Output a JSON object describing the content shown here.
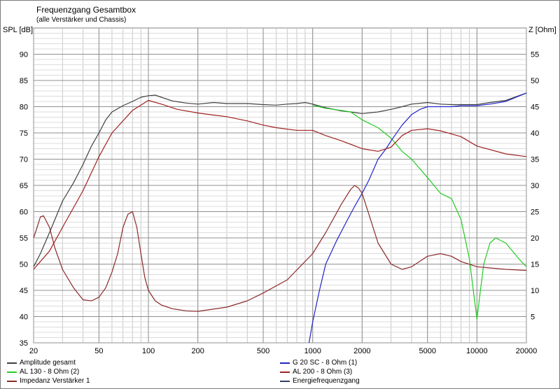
{
  "chart_data": {
    "type": "line",
    "title": "Frequenzgang Gesamtbox",
    "subtitle": "(alle Verstärker und Chassis)",
    "ylabel": "SPL [dB]",
    "y2label": "Z [Ohm]",
    "xscale": "log",
    "xlim": [
      20,
      20000
    ],
    "ylim": [
      35,
      95
    ],
    "y2lim": [
      0,
      60
    ],
    "grid": true,
    "x_ticks": [
      20,
      50,
      100,
      200,
      500,
      1000,
      2000,
      5000,
      10000,
      20000
    ],
    "y_ticks": [
      35,
      40,
      45,
      50,
      55,
      60,
      65,
      70,
      75,
      80,
      85,
      90
    ],
    "y2_ticks": [
      5,
      10,
      15,
      20,
      25,
      30,
      35,
      40,
      45,
      50,
      55
    ],
    "series": [
      {
        "name": "Amplitude gesamt",
        "color": "#404040",
        "axis": "left",
        "x": [
          20,
          22,
          25,
          30,
          35,
          40,
          45,
          50,
          55,
          60,
          70,
          80,
          90,
          100,
          110,
          120,
          140,
          170,
          200,
          250,
          300,
          400,
          500,
          600,
          700,
          800,
          900,
          1000,
          1200,
          1500,
          1700,
          2000,
          2500,
          3000,
          3500,
          4000,
          5000,
          6000,
          7000,
          8000,
          10000,
          12000,
          15000,
          20000
        ],
        "y": [
          49.5,
          52,
          56,
          62,
          65.5,
          69,
          72.5,
          75,
          77.5,
          79,
          80.2,
          81,
          81.8,
          82.1,
          82.2,
          81.8,
          81.1,
          80.7,
          80.5,
          80.8,
          80.6,
          80.6,
          80.4,
          80.3,
          80.5,
          80.6,
          80.8,
          80.5,
          79.8,
          79.2,
          79.0,
          78.7,
          79.0,
          79.5,
          80.0,
          80.5,
          80.8,
          80.5,
          80.4,
          80.4,
          80.4,
          80.8,
          81.2,
          82.6
        ]
      },
      {
        "name": "AL 130 - 8 Ohm (2)",
        "color": "#22cc22",
        "axis": "left",
        "x": [
          1000,
          1200,
          1500,
          1700,
          2000,
          2500,
          3000,
          3500,
          4000,
          5000,
          6000,
          7000,
          8000,
          9000,
          9500,
          10000,
          10500,
          11000,
          12000,
          13000,
          15000,
          18000,
          20000
        ],
        "y": [
          80.3,
          79.7,
          79.3,
          79.0,
          77.5,
          76.0,
          74.0,
          71.5,
          70.0,
          66.5,
          63.5,
          62.5,
          58.5,
          51.0,
          45.0,
          39.5,
          45.0,
          50.0,
          54.0,
          55.0,
          54.0,
          51.0,
          49.5
        ]
      },
      {
        "name": "G 20 SC - 8 Ohm (1)",
        "color": "#2222cc",
        "axis": "left",
        "x": [
          950,
          1000,
          1100,
          1200,
          1400,
          1600,
          1800,
          2000,
          2200,
          2500,
          2800,
          3000,
          3500,
          4000,
          4500,
          5000,
          6000,
          7000,
          8000,
          10000,
          12000,
          15000,
          20000
        ],
        "y": [
          35.0,
          39.0,
          45.0,
          50.0,
          54.5,
          58.0,
          61.0,
          63.5,
          66.0,
          70.0,
          72.0,
          73.5,
          76.5,
          78.5,
          79.5,
          80.0,
          80.0,
          80.0,
          80.2,
          80.2,
          80.5,
          81.0,
          82.6
        ]
      },
      {
        "name": "AL 200 - 8 Ohm (3)",
        "color": "#a02020",
        "axis": "left",
        "x": [
          20,
          25,
          30,
          40,
          50,
          60,
          80,
          100,
          120,
          150,
          200,
          250,
          300,
          400,
          500,
          600,
          800,
          1000,
          1200,
          1500,
          2000,
          2500,
          3000,
          3500,
          4000,
          5000,
          6000,
          8000,
          10000,
          15000,
          20000
        ],
        "y": [
          49.0,
          52.5,
          57.0,
          64.0,
          70.5,
          75.0,
          79.3,
          81.2,
          80.5,
          79.5,
          78.8,
          78.4,
          78.1,
          77.3,
          76.5,
          76.0,
          75.5,
          75.5,
          74.5,
          73.5,
          72.0,
          71.5,
          72.3,
          74.5,
          75.5,
          75.8,
          75.4,
          74.3,
          72.5,
          71.0,
          70.5
        ]
      },
      {
        "name": "Impedanz Verstärker 1",
        "color": "#8b2a2a",
        "axis": "right",
        "x": [
          20,
          21,
          22,
          23,
          25,
          27,
          30,
          35,
          40,
          45,
          50,
          55,
          60,
          65,
          70,
          75,
          80,
          85,
          90,
          95,
          100,
          110,
          120,
          140,
          170,
          200,
          300,
          400,
          500,
          700,
          1000,
          1200,
          1500,
          1700,
          1800,
          1900,
          2000,
          2200,
          2500,
          3000,
          3500,
          4000,
          5000,
          6000,
          7000,
          8000,
          10000,
          15000,
          20000
        ],
        "y": [
          20,
          22,
          24,
          24.2,
          22,
          18,
          14,
          10.5,
          8.2,
          8.0,
          8.7,
          10.5,
          13.5,
          17,
          22,
          24.5,
          25,
          22,
          17,
          12.5,
          10,
          8.0,
          7.2,
          6.5,
          6.1,
          6.0,
          6.8,
          8.0,
          9.5,
          12.0,
          17.0,
          21.0,
          26.5,
          29.2,
          30.0,
          29.5,
          28.5,
          24.5,
          19.0,
          15.0,
          14.0,
          14.5,
          16.5,
          17.0,
          16.5,
          15.5,
          14.5,
          14.0,
          13.8
        ]
      },
      {
        "name": "Energiefrequenzgang",
        "color": "#304060",
        "axis": "left",
        "x": [
          20,
          20000
        ],
        "y": [
          null,
          null
        ]
      }
    ],
    "legend": [
      {
        "name": "Amplitude gesamt",
        "color": "#404040"
      },
      {
        "name": "G 20 SC - 8 Ohm (1)",
        "color": "#2222cc"
      },
      {
        "name": "AL 130 - 8 Ohm (2)",
        "color": "#22cc22"
      },
      {
        "name": "AL 200 - 8 Ohm (3)",
        "color": "#a02020"
      },
      {
        "name": "Impedanz Verstärker 1",
        "color": "#8b2a2a"
      },
      {
        "name": "Energiefrequenzgang",
        "color": "#304060"
      }
    ],
    "legend_placement": "bottom"
  }
}
